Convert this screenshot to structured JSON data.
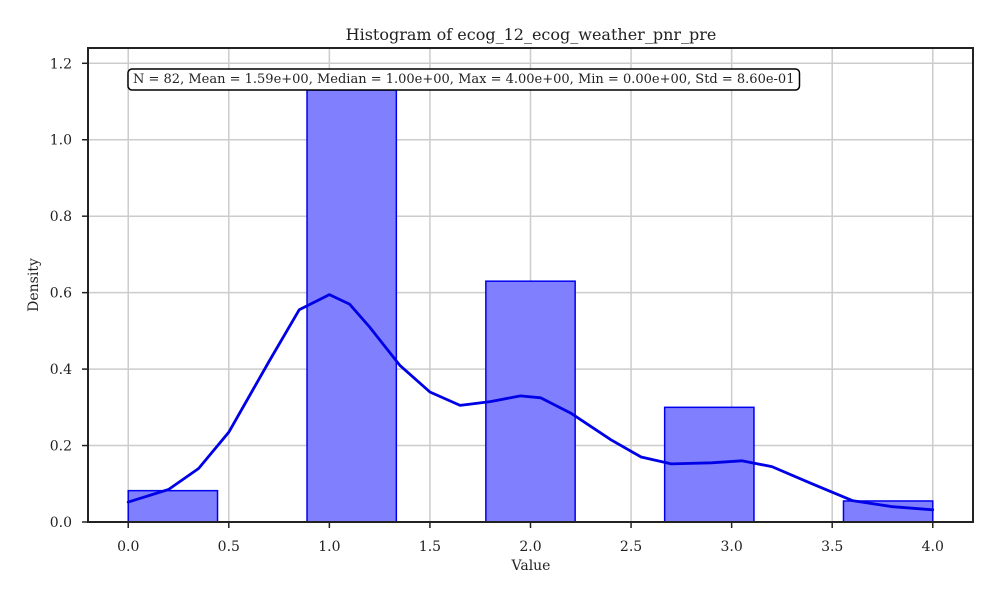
{
  "chart_data": {
    "type": "bar",
    "title": "Histogram of ecog_12_ecog_weather_pnr_pre",
    "xlabel": "Value",
    "ylabel": "Density",
    "xlim": [
      -0.2,
      4.2
    ],
    "ylim": [
      0,
      1.24
    ],
    "xticks": [
      "0.0",
      "0.5",
      "1.0",
      "1.5",
      "2.0",
      "2.5",
      "3.0",
      "3.5",
      "4.0"
    ],
    "yticks": [
      "0.0",
      "0.2",
      "0.4",
      "0.6",
      "0.8",
      "1.0",
      "1.2"
    ],
    "grid": true,
    "bins": [
      {
        "x0": 0.0,
        "x1": 0.444,
        "value": 0.082
      },
      {
        "x0": 0.889,
        "x1": 1.333,
        "value": 1.13
      },
      {
        "x0": 1.778,
        "x1": 2.222,
        "value": 0.63
      },
      {
        "x0": 2.667,
        "x1": 3.111,
        "value": 0.3
      },
      {
        "x0": 3.556,
        "x1": 4.0,
        "value": 0.055
      }
    ],
    "kde": {
      "x": [
        0.0,
        0.2,
        0.35,
        0.5,
        0.7,
        0.85,
        1.0,
        1.1,
        1.2,
        1.35,
        1.5,
        1.65,
        1.8,
        1.95,
        2.05,
        2.2,
        2.4,
        2.55,
        2.7,
        2.9,
        3.05,
        3.2,
        3.4,
        3.6,
        3.8,
        4.0
      ],
      "y": [
        0.052,
        0.085,
        0.14,
        0.235,
        0.42,
        0.555,
        0.595,
        0.57,
        0.51,
        0.41,
        0.34,
        0.305,
        0.315,
        0.33,
        0.325,
        0.285,
        0.215,
        0.17,
        0.152,
        0.155,
        0.16,
        0.145,
        0.1,
        0.056,
        0.04,
        0.032
      ]
    },
    "annotation": "N = 82, Mean = 1.59e+00, Median = 1.00e+00, Max = 4.00e+00, Min = 0.00e+00, Std = 8.60e-01",
    "colors": {
      "bar_fill": "#8080ff",
      "bar_edge": "#0000ee",
      "kde_line": "#0000e6",
      "grid": "#cccccc",
      "axes": "#222222"
    }
  }
}
